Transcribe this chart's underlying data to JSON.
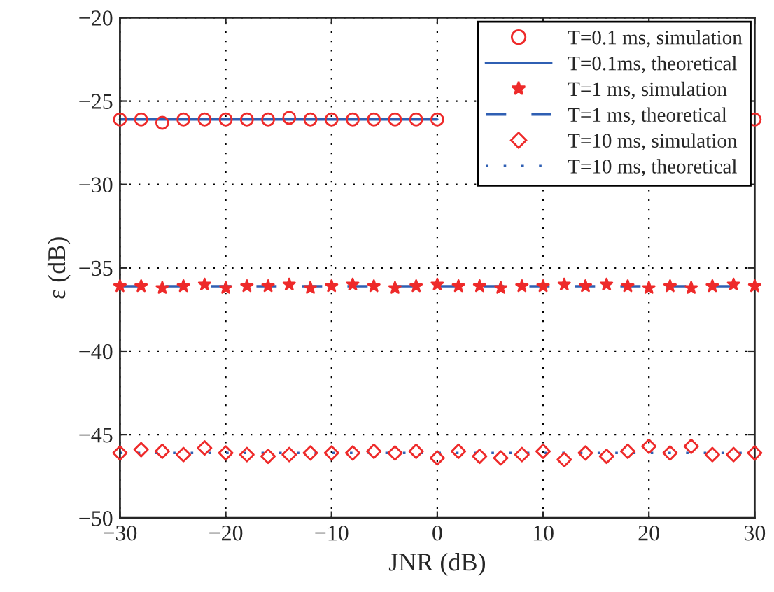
{
  "chart_data": {
    "type": "scatter",
    "xlabel": "JNR (dB)",
    "ylabel": "ε (dB)",
    "x": [
      -30,
      -28,
      -26,
      -24,
      -22,
      -20,
      -18,
      -16,
      -14,
      -12,
      -10,
      -8,
      -6,
      -4,
      -2,
      0,
      2,
      4,
      6,
      8,
      10,
      12,
      14,
      16,
      18,
      20,
      22,
      24,
      26,
      28,
      30
    ],
    "series": [
      {
        "name": "T=0.1 ms, simulation",
        "marker": "circle",
        "color": "#ee2a2a",
        "values": [
          -26.1,
          -26.1,
          -26.3,
          -26.1,
          -26.1,
          -26.1,
          -26.1,
          -26.1,
          -26.0,
          -26.1,
          -26.1,
          -26.1,
          -26.1,
          -26.1,
          -26.1,
          -26.1,
          null,
          null,
          null,
          null,
          null,
          null,
          null,
          null,
          null,
          null,
          null,
          null,
          null,
          null,
          -26.1
        ]
      },
      {
        "name": "T=0.1ms, theoretical",
        "type": "line",
        "line_style": "solid",
        "color": "#2f5fb3",
        "values": [
          -26.1,
          -26.1,
          -26.1,
          -26.1,
          -26.1,
          -26.1,
          -26.1,
          -26.1,
          -26.1,
          -26.1,
          -26.1,
          -26.1,
          -26.1,
          -26.1,
          -26.1,
          -26.1,
          null,
          null,
          null,
          null,
          null,
          null,
          null,
          null,
          null,
          null,
          null,
          null,
          null,
          null,
          null
        ]
      },
      {
        "name": "T=1 ms, simulation",
        "marker": "star",
        "color": "#ee2a2a",
        "values": [
          -36.1,
          -36.1,
          -36.2,
          -36.1,
          -36.0,
          -36.2,
          -36.1,
          -36.1,
          -36.0,
          -36.2,
          -36.1,
          -36.0,
          -36.1,
          -36.2,
          -36.1,
          -36.0,
          -36.1,
          -36.1,
          -36.2,
          -36.1,
          -36.1,
          -36.0,
          -36.1,
          -36.0,
          -36.1,
          -36.2,
          -36.1,
          -36.2,
          -36.1,
          -36.0,
          -36.1
        ]
      },
      {
        "name": "T=1 ms, theoretical",
        "type": "line",
        "line_style": "dashed",
        "color": "#2f5fb3",
        "values": [
          -36.1,
          -36.1,
          -36.1,
          -36.1,
          -36.1,
          -36.1,
          -36.1,
          -36.1,
          -36.1,
          -36.1,
          -36.1,
          -36.1,
          -36.1,
          -36.1,
          -36.1,
          -36.1,
          -36.1,
          -36.1,
          -36.1,
          -36.1,
          -36.1,
          -36.1,
          -36.1,
          -36.1,
          -36.1,
          -36.1,
          -36.1,
          -36.1,
          -36.1,
          -36.1,
          -36.1
        ]
      },
      {
        "name": "T=10 ms, simulation",
        "marker": "diamond",
        "color": "#ee2a2a",
        "values": [
          -46.1,
          -45.9,
          -46.0,
          -46.2,
          -45.8,
          -46.1,
          -46.2,
          -46.3,
          -46.2,
          -46.1,
          -46.1,
          -46.1,
          -46.0,
          -46.1,
          -46.0,
          -46.4,
          -46.0,
          -46.3,
          -46.4,
          -46.2,
          -46.0,
          -46.5,
          -46.1,
          -46.3,
          -46.0,
          -45.7,
          -46.1,
          -45.7,
          -46.2,
          -46.2,
          -46.1
        ]
      },
      {
        "name": "T=10 ms, theoretical",
        "type": "line",
        "line_style": "dotted",
        "color": "#2f5fb3",
        "values": [
          -46.1,
          -46.1,
          -46.1,
          -46.1,
          -46.1,
          -46.1,
          -46.1,
          -46.1,
          -46.1,
          -46.1,
          -46.1,
          -46.1,
          -46.1,
          -46.1,
          -46.1,
          -46.1,
          -46.1,
          -46.1,
          -46.1,
          -46.1,
          -46.1,
          -46.1,
          -46.1,
          -46.1,
          -46.1,
          -46.1,
          -46.1,
          -46.1,
          -46.1,
          -46.1,
          -46.1
        ]
      }
    ],
    "xlim": [
      -30,
      30
    ],
    "ylim": [
      -50,
      -20
    ],
    "xticks": [
      -30,
      -20,
      -10,
      0,
      10,
      20,
      30
    ],
    "yticks": [
      -50,
      -45,
      -40,
      -35,
      -30,
      -25,
      -20
    ],
    "grid": true,
    "legend": "top right"
  }
}
